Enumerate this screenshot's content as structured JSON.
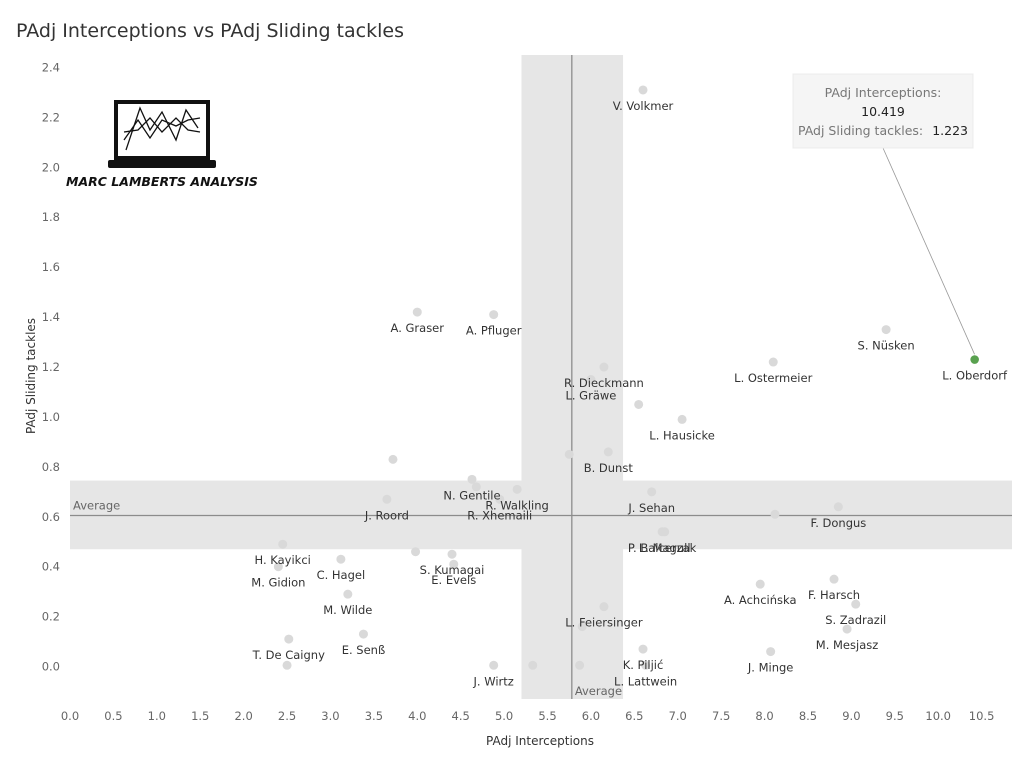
{
  "chart_data": {
    "type": "scatter",
    "title": "PAdj Interceptions vs PAdj Sliding tackles",
    "xlabel": "PAdj Interceptions",
    "ylabel": "PAdj Sliding tackles",
    "xlim": [
      0.0,
      10.85
    ],
    "ylim": [
      -0.13,
      2.45
    ],
    "x_ticks": [
      0.0,
      0.5,
      1.0,
      1.5,
      2.0,
      2.5,
      3.0,
      3.5,
      4.0,
      4.5,
      5.0,
      5.5,
      6.0,
      6.5,
      7.0,
      7.5,
      8.0,
      8.5,
      9.0,
      9.5,
      10.0,
      10.5
    ],
    "y_ticks": [
      0.0,
      0.2,
      0.4,
      0.6,
      0.8,
      1.0,
      1.2,
      1.4,
      1.6,
      1.8,
      2.0,
      2.2,
      2.4
    ],
    "average": {
      "x": 5.78,
      "y": 0.605,
      "label": "Average",
      "x_band": [
        5.2,
        6.37
      ],
      "y_band": [
        0.47,
        0.745
      ]
    },
    "grid": false,
    "highlight_color": "#59a14f",
    "point_color": "#d9d9d9",
    "tooltip": {
      "line1": "PAdj Interceptions:",
      "value1": "10.419",
      "line2": "PAdj Sliding tackles:",
      "value2": "1.223"
    },
    "points": [
      {
        "label": "V. Volkmer",
        "x": 6.6,
        "y": 2.31
      },
      {
        "label": "A. Graser",
        "x": 4.0,
        "y": 1.42
      },
      {
        "label": "A. Pfluger",
        "x": 4.88,
        "y": 1.41
      },
      {
        "label": "S. Nüsken",
        "x": 9.4,
        "y": 1.35
      },
      {
        "label": "L. Oberdorf",
        "x": 10.42,
        "y": 1.23,
        "highlight": true
      },
      {
        "label": "L. Ostermeier",
        "x": 8.1,
        "y": 1.22
      },
      {
        "label": "R. Dieckmann",
        "x": 6.15,
        "y": 1.2
      },
      {
        "label": "L. Gräwe",
        "x": 6.0,
        "y": 1.15
      },
      {
        "label": "",
        "x": 6.55,
        "y": 1.05
      },
      {
        "label": "L. Hausicke",
        "x": 7.05,
        "y": 0.99
      },
      {
        "label": "",
        "x": 5.75,
        "y": 0.85
      },
      {
        "label": "B. Dunst",
        "x": 6.2,
        "y": 0.86
      },
      {
        "label": "",
        "x": 3.72,
        "y": 0.83
      },
      {
        "label": "R. Walkling",
        "x": 5.15,
        "y": 0.71
      },
      {
        "label": "N. Gentile",
        "x": 4.63,
        "y": 0.75
      },
      {
        "label": "",
        "x": 4.68,
        "y": 0.72
      },
      {
        "label": "J. Sehan",
        "x": 6.7,
        "y": 0.7
      },
      {
        "label": "J. Roord",
        "x": 3.65,
        "y": 0.67
      },
      {
        "label": "R. Xhemaili",
        "x": 4.95,
        "y": 0.67
      },
      {
        "label": "L. Magull",
        "x": 6.85,
        "y": 0.54
      },
      {
        "label": "F. Dongus",
        "x": 8.85,
        "y": 0.64
      },
      {
        "label": "",
        "x": 8.12,
        "y": 0.61
      },
      {
        "label": "P. Balcerzak",
        "x": 6.82,
        "y": 0.54
      },
      {
        "label": "H. Kayikci",
        "x": 2.45,
        "y": 0.49
      },
      {
        "label": "S. Kumagai",
        "x": 4.4,
        "y": 0.45
      },
      {
        "label": "",
        "x": 3.98,
        "y": 0.46
      },
      {
        "label": "C. Hagel",
        "x": 3.12,
        "y": 0.43
      },
      {
        "label": "E. Evels",
        "x": 4.42,
        "y": 0.41
      },
      {
        "label": "M. Gidion",
        "x": 2.4,
        "y": 0.4
      },
      {
        "label": "F. Harsch",
        "x": 8.8,
        "y": 0.35
      },
      {
        "label": "A. Achcińska",
        "x": 7.95,
        "y": 0.33
      },
      {
        "label": "M. Wilde",
        "x": 3.2,
        "y": 0.29
      },
      {
        "label": "S. Zadrazil",
        "x": 9.05,
        "y": 0.25
      },
      {
        "label": "L. Feiersinger",
        "x": 6.15,
        "y": 0.24
      },
      {
        "label": "",
        "x": 5.9,
        "y": 0.16
      },
      {
        "label": "M. Mesjasz",
        "x": 8.95,
        "y": 0.15
      },
      {
        "label": "E. Senß",
        "x": 3.38,
        "y": 0.13
      },
      {
        "label": "T. De Caigny",
        "x": 2.52,
        "y": 0.11
      },
      {
        "label": "K. Piljić",
        "x": 6.6,
        "y": 0.07
      },
      {
        "label": "J. Minge",
        "x": 8.07,
        "y": 0.06
      },
      {
        "label": "J. Wirtz",
        "x": 4.88,
        "y": 0.005
      },
      {
        "label": "",
        "x": 5.33,
        "y": 0.005
      },
      {
        "label": "",
        "x": 5.87,
        "y": 0.005
      },
      {
        "label": "L. Lattwein",
        "x": 6.63,
        "y": 0.005
      },
      {
        "label": "",
        "x": 2.5,
        "y": 0.005
      }
    ]
  },
  "logo": {
    "text": "MARC LAMBERTS ANALYSIS"
  }
}
